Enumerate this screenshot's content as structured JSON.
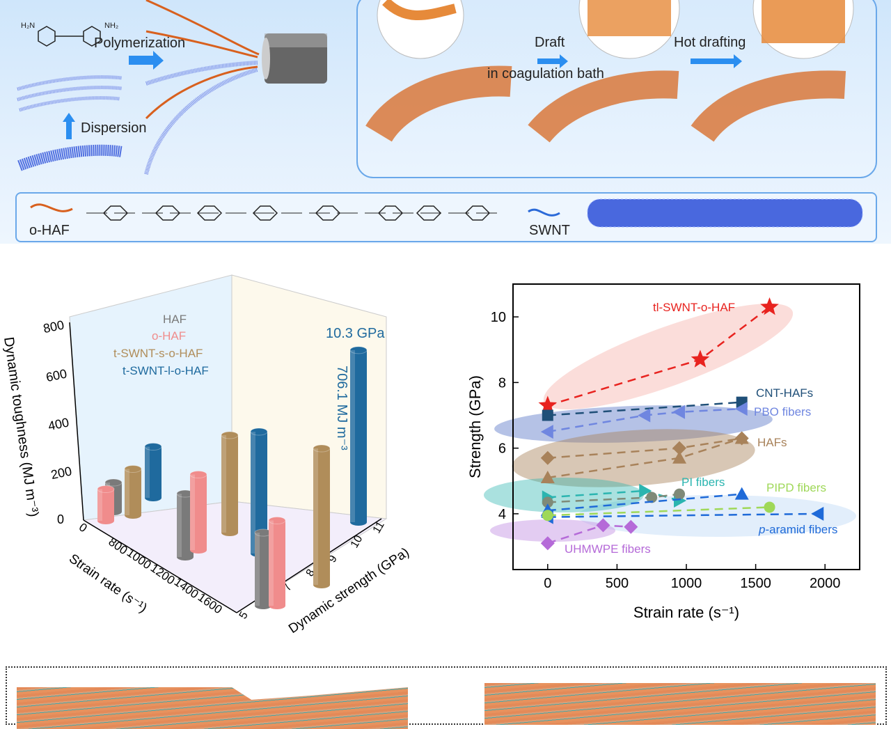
{
  "top_panel": {
    "polymerization": "Polymerization",
    "dispersion": "Dispersion",
    "draft": "Draft",
    "coag": "in coagulation bath",
    "hot_drafting": "Hot drafting",
    "o_haf": "o-HAF",
    "swnt": "SWNT",
    "amine_left": "H₂N",
    "amine_right": "NH₂",
    "colors": {
      "fiber": "#d8601e",
      "cnt": "#2b4fd8",
      "frame": "#6aa8ea"
    }
  },
  "chart_data": [
    {
      "type": "bar",
      "subtype": "3d-cylinder",
      "zlabel": "Dynamic toughness (MJ m⁻³)",
      "xlabel": "Strain rate (s⁻¹)",
      "ylabel": "Dynamic strength (GPa)",
      "ztick_labels": [
        "0",
        "200",
        "400",
        "600",
        "800"
      ],
      "xtick_labels": [
        "0",
        "800",
        "1000",
        "1200",
        "1400",
        "1600"
      ],
      "ytick_labels": [
        "5",
        "6",
        "7",
        "8",
        "9",
        "10",
        "11"
      ],
      "zlim": [
        0,
        800
      ],
      "legend": [
        "HAF",
        "o-HAF",
        "t-SWNT-s-o-HAF",
        "t-SWNT-l-o-HAF"
      ],
      "legend_colors": [
        "#7a7a7a",
        "#f08c8c",
        "#b08d5a",
        "#1f6a9e"
      ],
      "annotations": {
        "strength": "10.3 GPa",
        "toughness": "706.1 MJ m⁻³"
      },
      "bars": [
        {
          "series": "HAF",
          "toughness": 120
        },
        {
          "series": "o-HAF",
          "toughness": 130
        },
        {
          "series": "t-SWNT-s-o-HAF",
          "toughness": 190
        },
        {
          "series": "t-SWNT-l-o-HAF",
          "toughness": 210
        },
        {
          "series": "HAF",
          "toughness": 260
        },
        {
          "series": "o-HAF",
          "toughness": 310
        },
        {
          "series": "t-SWNT-s-o-HAF",
          "toughness": 400
        },
        {
          "series": "t-SWNT-l-o-HAF",
          "toughness": 500
        },
        {
          "series": "HAF",
          "toughness": 300
        },
        {
          "series": "o-HAF",
          "toughness": 350
        },
        {
          "series": "t-SWNT-s-o-HAF",
          "toughness": 560
        },
        {
          "series": "t-SWNT-l-o-HAF",
          "toughness": 706.1
        }
      ]
    },
    {
      "type": "scatter",
      "xlabel": "Strain rate (s⁻¹)",
      "ylabel": "Strength (GPa)",
      "xlim": [
        -250,
        2250
      ],
      "ylim": [
        2.3,
        11
      ],
      "xticks": [
        0,
        500,
        1000,
        1500,
        2000
      ],
      "yticks": [
        4,
        6,
        8,
        10
      ],
      "grid": false,
      "series": [
        {
          "name": "tl-SWNT-o-HAF",
          "color": "#e8231f",
          "marker": "star",
          "x": [
            0,
            1100,
            1600
          ],
          "y": [
            7.3,
            8.7,
            10.3
          ]
        },
        {
          "name": "CNT-HAFs",
          "color": "#1f4f78",
          "marker": "square",
          "x": [
            0,
            1400
          ],
          "y": [
            7.0,
            7.4
          ]
        },
        {
          "name": "PBO fibers",
          "color": "#6f86e0",
          "marker": "triangle-left",
          "x": [
            0,
            700,
            950,
            1400
          ],
          "y": [
            6.5,
            7.0,
            7.1,
            7.2
          ]
        },
        {
          "name": "HAFs",
          "color": "#a8825a",
          "marker": "diamond",
          "x": [
            0,
            950,
            1400
          ],
          "y": [
            5.7,
            6.0,
            6.3
          ]
        },
        {
          "name": "HAFs",
          "color": "#a8825a",
          "marker": "triangle",
          "x": [
            0,
            950,
            1400
          ],
          "y": [
            5.1,
            5.7,
            6.3
          ]
        },
        {
          "name": "PI fibers",
          "color": "#2bb5b0",
          "marker": "triangle-right",
          "x": [
            0,
            700,
            950
          ],
          "y": [
            4.5,
            4.7,
            4.4
          ]
        },
        {
          "name": "PI fibers",
          "color": "#7f8a78",
          "marker": "circle",
          "x": [
            0,
            750,
            950
          ],
          "y": [
            4.35,
            4.5,
            4.6
          ]
        },
        {
          "name": "p-aramid fibers",
          "color": "#1f6ad8",
          "marker": "triangle",
          "x": [
            0,
            1400
          ],
          "y": [
            4.1,
            4.6
          ]
        },
        {
          "name": "p-aramid fibers",
          "color": "#1f6ad8",
          "marker": "triangle-left",
          "x": [
            0,
            1950
          ],
          "y": [
            3.9,
            4.0
          ]
        },
        {
          "name": "PIPD fibers",
          "color": "#9fd858",
          "marker": "circle",
          "x": [
            0,
            1600
          ],
          "y": [
            3.95,
            4.2
          ]
        },
        {
          "name": "UHMWPE fibers",
          "color": "#b56ad8",
          "marker": "diamond",
          "x": [
            0,
            400,
            600
          ],
          "y": [
            3.1,
            3.65,
            3.6
          ]
        }
      ],
      "labels": {
        "tl": "tl-SWNT-o-HAF",
        "cnt": "CNT-HAFs",
        "pbo": "PBO fibers",
        "hafs": "HAFs",
        "pi": "PI fibers",
        "pipd": "PIPD fibers",
        "paramid_p": "p",
        "paramid": "-aramid fibers",
        "uhmwpe": "UHMWPE fibers"
      }
    }
  ]
}
